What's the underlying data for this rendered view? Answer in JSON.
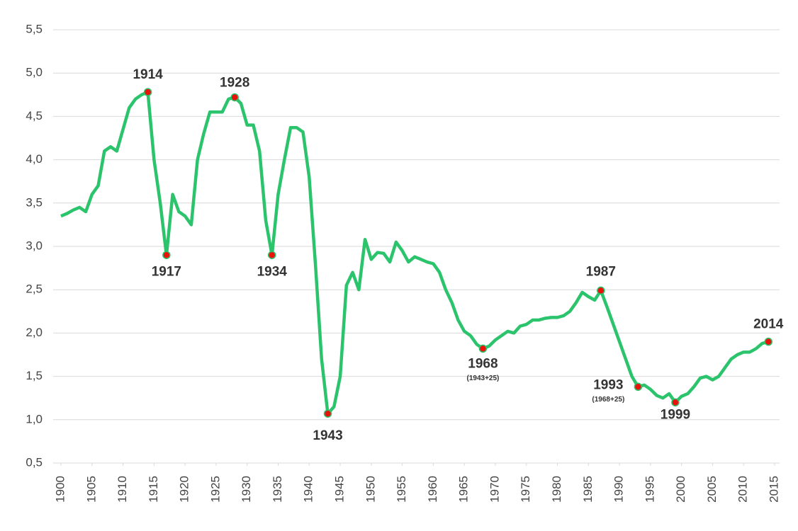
{
  "chart_data": {
    "type": "line",
    "x": [
      1900,
      1901,
      1902,
      1903,
      1904,
      1905,
      1906,
      1907,
      1908,
      1909,
      1910,
      1911,
      1912,
      1913,
      1914,
      1915,
      1916,
      1917,
      1918,
      1919,
      1920,
      1921,
      1922,
      1923,
      1924,
      1925,
      1926,
      1927,
      1928,
      1929,
      1930,
      1931,
      1932,
      1933,
      1934,
      1935,
      1936,
      1937,
      1938,
      1939,
      1940,
      1941,
      1942,
      1943,
      1944,
      1945,
      1946,
      1947,
      1948,
      1949,
      1950,
      1951,
      1952,
      1953,
      1954,
      1955,
      1956,
      1957,
      1958,
      1959,
      1960,
      1961,
      1962,
      1963,
      1964,
      1965,
      1966,
      1967,
      1968,
      1969,
      1970,
      1971,
      1972,
      1973,
      1974,
      1975,
      1976,
      1977,
      1978,
      1979,
      1980,
      1981,
      1982,
      1983,
      1984,
      1985,
      1986,
      1987,
      1988,
      1989,
      1990,
      1991,
      1992,
      1993,
      1994,
      1995,
      1996,
      1997,
      1998,
      1999,
      2000,
      2001,
      2002,
      2003,
      2004,
      2005,
      2006,
      2007,
      2008,
      2009,
      2010,
      2011,
      2012,
      2013,
      2014
    ],
    "series": [
      {
        "color": "#2bc46c",
        "values": [
          3.35,
          3.38,
          3.42,
          3.45,
          3.4,
          3.6,
          3.7,
          4.1,
          4.15,
          4.1,
          4.35,
          4.6,
          4.7,
          4.75,
          4.78,
          4.0,
          3.5,
          2.9,
          3.6,
          3.4,
          3.35,
          3.25,
          4.0,
          4.3,
          4.55,
          4.55,
          4.55,
          4.7,
          4.72,
          4.65,
          4.4,
          4.4,
          4.1,
          3.3,
          2.9,
          3.6,
          4.0,
          4.37,
          4.37,
          4.32,
          3.8,
          2.8,
          1.7,
          1.07,
          1.15,
          1.5,
          2.55,
          2.7,
          2.5,
          3.08,
          2.85,
          2.93,
          2.92,
          2.82,
          3.05,
          2.95,
          2.82,
          2.88,
          2.85,
          2.82,
          2.8,
          2.7,
          2.5,
          2.35,
          2.15,
          2.02,
          1.97,
          1.87,
          1.82,
          1.85,
          1.92,
          1.97,
          2.02,
          2.0,
          2.08,
          2.1,
          2.15,
          2.15,
          2.17,
          2.18,
          2.18,
          2.2,
          2.25,
          2.35,
          2.47,
          2.42,
          2.38,
          2.49,
          2.3,
          2.1,
          1.9,
          1.7,
          1.5,
          1.38,
          1.4,
          1.35,
          1.28,
          1.25,
          1.3,
          1.2,
          1.27,
          1.3,
          1.38,
          1.48,
          1.5,
          1.46,
          1.5,
          1.6,
          1.7,
          1.75,
          1.78,
          1.78,
          1.82,
          1.88,
          1.9
        ]
      }
    ],
    "xlim": [
      1900,
      2015
    ],
    "xticks": [
      1900,
      1905,
      1910,
      1915,
      1920,
      1925,
      1930,
      1935,
      1940,
      1945,
      1950,
      1955,
      1960,
      1965,
      1970,
      1975,
      1980,
      1985,
      1990,
      1995,
      2000,
      2005,
      2010,
      2015
    ],
    "ylim": [
      0.5,
      5.5
    ],
    "yticks": [
      {
        "value": 0.5,
        "label": "0,5"
      },
      {
        "value": 1.0,
        "label": "1,0"
      },
      {
        "value": 1.5,
        "label": "1,5"
      },
      {
        "value": 2.0,
        "label": "2,0"
      },
      {
        "value": 2.5,
        "label": "2,5"
      },
      {
        "value": 3.0,
        "label": "3,0"
      },
      {
        "value": 3.5,
        "label": "3,5"
      },
      {
        "value": 4.0,
        "label": "4,0"
      },
      {
        "value": 4.5,
        "label": "4,5"
      },
      {
        "value": 5.0,
        "label": "5,0"
      },
      {
        "value": 5.5,
        "label": "5,5"
      }
    ],
    "grid": true,
    "marker_color": "#e8140c",
    "annotations": [
      {
        "text": "1914",
        "x": 1914,
        "y": 4.78
      },
      {
        "text": "1917",
        "x": 1917,
        "y": 2.9
      },
      {
        "text": "1928",
        "x": 1928,
        "y": 4.72
      },
      {
        "text": "1934",
        "x": 1934,
        "y": 2.9
      },
      {
        "text": "1943",
        "x": 1943,
        "y": 1.07
      },
      {
        "text": "1968",
        "x": 1968,
        "y": 1.82,
        "note": "(1943+25)"
      },
      {
        "text": "1987",
        "x": 1987,
        "y": 2.49
      },
      {
        "text": "1993",
        "x": 1993,
        "y": 1.38,
        "note": "(1968+25)"
      },
      {
        "text": "1999",
        "x": 1999,
        "y": 1.2
      },
      {
        "text": "2014",
        "x": 2014,
        "y": 1.9
      }
    ]
  }
}
